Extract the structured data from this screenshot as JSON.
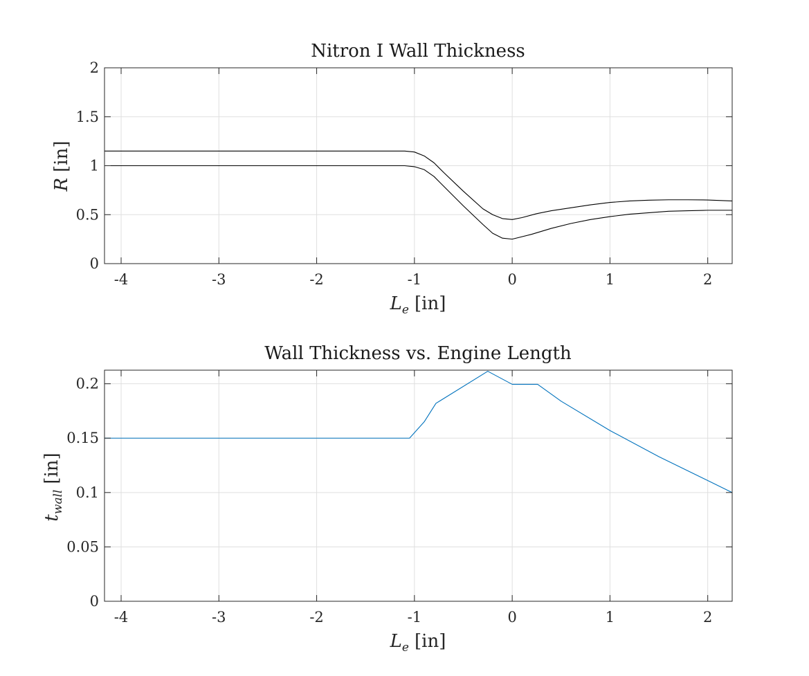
{
  "chart_data": [
    {
      "type": "line",
      "title": "Nitron I Wall Thickness",
      "xlabel_main": "L",
      "xlabel_sub": "e",
      "xlabel_unit": "[in]",
      "ylabel_main": "R",
      "ylabel_unit": "[in]",
      "xlim": [
        -4.17,
        2.25
      ],
      "ylim": [
        0,
        2
      ],
      "xticks": [
        -4,
        -3,
        -2,
        -1,
        0,
        1,
        2
      ],
      "xtick_labels": [
        "-4",
        "-3",
        "-2",
        "-1",
        "0",
        "1",
        "2"
      ],
      "yticks": [
        0,
        0.5,
        1,
        1.5,
        2
      ],
      "ytick_labels": [
        "0",
        "0.5",
        "1",
        "1.5",
        "2"
      ],
      "grid": true,
      "color": "#000000",
      "series": [
        {
          "x": [
            -4.17,
            -1.1,
            -1.0,
            -0.9,
            -0.8,
            -0.7,
            -0.5,
            -0.3,
            -0.2,
            -0.1,
            0.0,
            0.2,
            0.4,
            0.6,
            0.8,
            1.0,
            1.2,
            1.4,
            1.6,
            1.8,
            2.0,
            2.25
          ],
          "y": [
            1.0,
            1.0,
            0.99,
            0.96,
            0.89,
            0.79,
            0.59,
            0.4,
            0.31,
            0.26,
            0.25,
            0.3,
            0.36,
            0.41,
            0.45,
            0.48,
            0.505,
            0.52,
            0.535,
            0.54,
            0.545,
            0.545
          ]
        },
        {
          "x": [
            -4.17,
            -1.1,
            -1.0,
            -0.9,
            -0.8,
            -0.7,
            -0.5,
            -0.3,
            -0.2,
            -0.1,
            0.0,
            0.1,
            0.25,
            0.4,
            0.6,
            0.8,
            1.0,
            1.2,
            1.4,
            1.6,
            1.8,
            2.0,
            2.25
          ],
          "y": [
            1.15,
            1.15,
            1.14,
            1.1,
            1.03,
            0.93,
            0.74,
            0.56,
            0.5,
            0.46,
            0.45,
            0.47,
            0.51,
            0.54,
            0.57,
            0.6,
            0.625,
            0.64,
            0.648,
            0.652,
            0.652,
            0.65,
            0.64
          ]
        }
      ]
    },
    {
      "type": "line",
      "title": "Wall Thickness vs. Engine Length",
      "xlabel_main": "L",
      "xlabel_sub": "e",
      "xlabel_unit": "[in]",
      "ylabel_main": "t",
      "ylabel_sub": "wall",
      "ylabel_unit": "[in]",
      "xlim": [
        -4.17,
        2.25
      ],
      "ylim": [
        0,
        0.2125
      ],
      "xticks": [
        -4,
        -3,
        -2,
        -1,
        0,
        1,
        2
      ],
      "xtick_labels": [
        "-4",
        "-3",
        "-2",
        "-1",
        "0",
        "1",
        "2"
      ],
      "yticks": [
        0,
        0.05,
        0.1,
        0.15,
        0.2
      ],
      "ytick_labels": [
        "0",
        "0.05",
        "0.1",
        "0.15",
        "0.2"
      ],
      "grid": true,
      "color": "#0072BD",
      "series": [
        {
          "x": [
            -4.17,
            -1.05,
            -0.9,
            -0.78,
            -0.25,
            0.0,
            0.26,
            0.5,
            1.0,
            1.5,
            2.0,
            2.25
          ],
          "y": [
            0.15,
            0.15,
            0.165,
            0.182,
            0.2115,
            0.1995,
            0.1995,
            0.184,
            0.157,
            0.133,
            0.111,
            0.1
          ]
        }
      ]
    }
  ]
}
